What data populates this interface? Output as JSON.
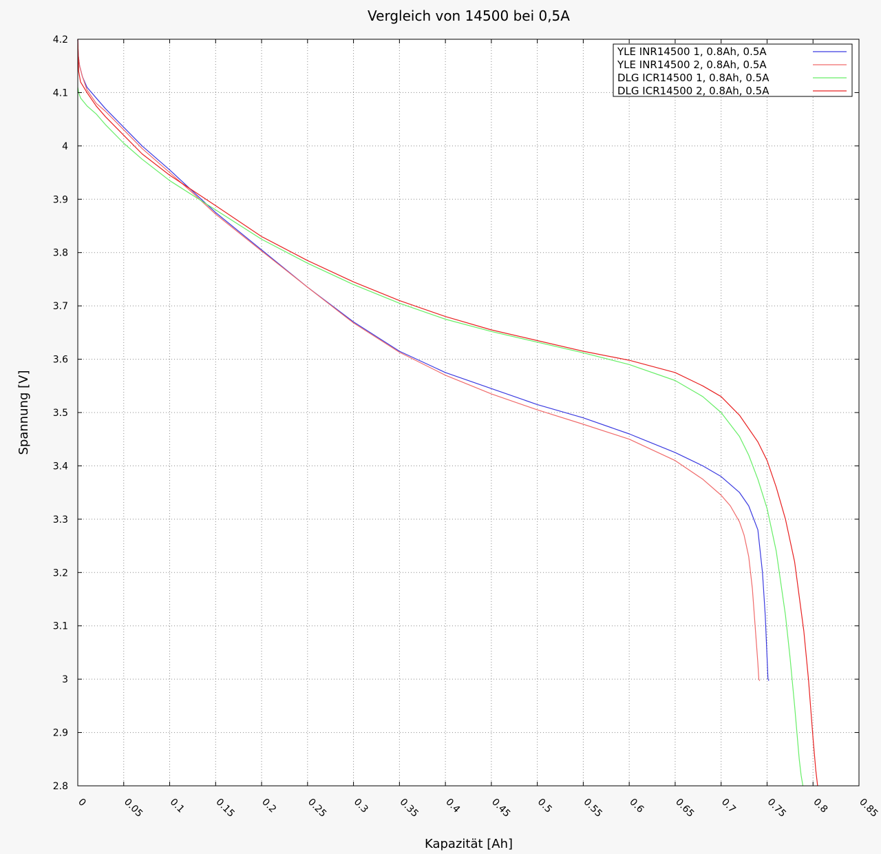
{
  "chart_data": {
    "type": "line",
    "title": "Vergleich von 14500 bei 0,5A",
    "xlabel": "Kapazität [Ah]",
    "ylabel": "Spannung [V]",
    "xlim": [
      0,
      0.85
    ],
    "ylim": [
      2.8,
      4.2
    ],
    "x_ticks": [
      "0",
      "0.05",
      "0.1",
      "0.15",
      "0.2",
      "0.25",
      "0.3",
      "0.35",
      "0.4",
      "0.45",
      "0.5",
      "0.55",
      "0.6",
      "0.65",
      "0.7",
      "0.75",
      "0.8",
      "0.85"
    ],
    "y_ticks": [
      "2.8",
      "2.9",
      "3",
      "3.1",
      "3.2",
      "3.3",
      "3.4",
      "3.5",
      "3.6",
      "3.7",
      "3.8",
      "3.9",
      "4",
      "4.1",
      "4.2"
    ],
    "grid": true,
    "legend_position": "top-right",
    "series": [
      {
        "name": "YLE INR14500 1, 0.8Ah, 0.5A",
        "color": "#3a3ae0",
        "x": [
          0,
          0.0005,
          0.002,
          0.005,
          0.01,
          0.02,
          0.03,
          0.05,
          0.07,
          0.1,
          0.125,
          0.15,
          0.2,
          0.25,
          0.3,
          0.35,
          0.4,
          0.45,
          0.5,
          0.55,
          0.6,
          0.65,
          0.68,
          0.7,
          0.72,
          0.73,
          0.74,
          0.745,
          0.748,
          0.75,
          0.751,
          0.752
        ],
        "y": [
          4.2,
          4.17,
          4.15,
          4.13,
          4.11,
          4.09,
          4.07,
          4.035,
          4.0,
          3.955,
          3.915,
          3.875,
          3.805,
          3.735,
          3.67,
          3.615,
          3.575,
          3.545,
          3.515,
          3.49,
          3.46,
          3.425,
          3.4,
          3.38,
          3.35,
          3.325,
          3.28,
          3.2,
          3.12,
          3.04,
          3.0,
          2.997
        ]
      },
      {
        "name": "YLE INR14500 2, 0.8Ah, 0.5A",
        "color": "#f06a6a",
        "x": [
          0,
          0.0005,
          0.002,
          0.005,
          0.01,
          0.02,
          0.03,
          0.05,
          0.07,
          0.1,
          0.125,
          0.15,
          0.2,
          0.25,
          0.3,
          0.35,
          0.4,
          0.45,
          0.5,
          0.55,
          0.6,
          0.65,
          0.68,
          0.7,
          0.71,
          0.72,
          0.725,
          0.73,
          0.734,
          0.737,
          0.74,
          0.741,
          0.742
        ],
        "y": [
          4.2,
          4.17,
          4.15,
          4.13,
          4.105,
          4.08,
          4.065,
          4.03,
          3.995,
          3.95,
          3.912,
          3.872,
          3.803,
          3.735,
          3.668,
          3.613,
          3.57,
          3.535,
          3.505,
          3.478,
          3.45,
          3.41,
          3.375,
          3.345,
          3.325,
          3.295,
          3.27,
          3.23,
          3.17,
          3.1,
          3.03,
          3.0,
          2.997
        ]
      },
      {
        "name": "DLG ICR14500 1, 0.8Ah, 0.5A",
        "color": "#66ee66",
        "x": [
          0,
          0.001,
          0.003,
          0.01,
          0.02,
          0.03,
          0.05,
          0.07,
          0.1,
          0.15,
          0.2,
          0.25,
          0.3,
          0.35,
          0.4,
          0.45,
          0.5,
          0.55,
          0.6,
          0.65,
          0.68,
          0.7,
          0.72,
          0.73,
          0.74,
          0.75,
          0.76,
          0.77,
          0.775,
          0.78,
          0.785,
          0.787,
          0.789
        ],
        "y": [
          4.11,
          4.1,
          4.09,
          4.075,
          4.06,
          4.04,
          4.005,
          3.975,
          3.935,
          3.88,
          3.825,
          3.78,
          3.74,
          3.705,
          3.675,
          3.652,
          3.632,
          3.612,
          3.59,
          3.56,
          3.53,
          3.5,
          3.455,
          3.42,
          3.375,
          3.32,
          3.24,
          3.12,
          3.04,
          2.95,
          2.85,
          2.82,
          2.8
        ]
      },
      {
        "name": "DLG ICR14500 2, 0.8Ah, 0.5A",
        "color": "#e82020",
        "x": [
          0,
          0.001,
          0.003,
          0.01,
          0.02,
          0.03,
          0.05,
          0.07,
          0.1,
          0.15,
          0.2,
          0.25,
          0.3,
          0.35,
          0.4,
          0.45,
          0.5,
          0.55,
          0.6,
          0.65,
          0.68,
          0.7,
          0.72,
          0.74,
          0.75,
          0.76,
          0.77,
          0.78,
          0.79,
          0.795,
          0.8,
          0.803,
          0.805
        ],
        "y": [
          4.2,
          4.14,
          4.12,
          4.1,
          4.075,
          4.055,
          4.02,
          3.985,
          3.945,
          3.888,
          3.83,
          3.785,
          3.745,
          3.71,
          3.68,
          3.655,
          3.635,
          3.615,
          3.598,
          3.575,
          3.55,
          3.53,
          3.495,
          3.445,
          3.41,
          3.36,
          3.3,
          3.22,
          3.09,
          3.0,
          2.89,
          2.83,
          2.8
        ]
      }
    ]
  }
}
